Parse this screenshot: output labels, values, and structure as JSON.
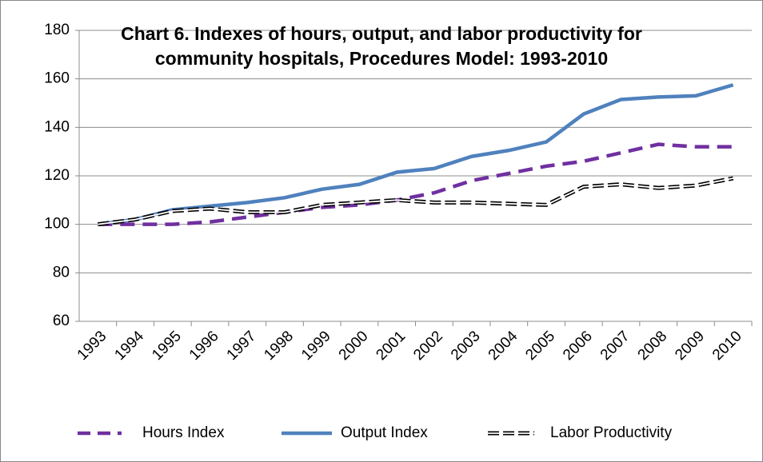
{
  "chart_data": {
    "type": "line",
    "title": "Chart 6. Indexes of hours, output, and labor productivity for community hospitals, Procedures Model: 1993-2010",
    "categories": [
      "1993",
      "1994",
      "1995",
      "1996",
      "1997",
      "1998",
      "1999",
      "2000",
      "2001",
      "2002",
      "2003",
      "2004",
      "2005",
      "2006",
      "2007",
      "2008",
      "2009",
      "2010"
    ],
    "series": [
      {
        "name": "Hours Index",
        "color": "#7030a0",
        "style": "dashed",
        "values": [
          100,
          100,
          100,
          101,
          103,
          105,
          107,
          108,
          110,
          113,
          118,
          121,
          124,
          126,
          129.5,
          133,
          132,
          132
        ]
      },
      {
        "name": "Output Index",
        "color": "#4f81bd",
        "style": "solid",
        "values": [
          100,
          102,
          106,
          107.5,
          109,
          111,
          114.5,
          116.5,
          121.5,
          123,
          128,
          130.5,
          134,
          145.5,
          151.5,
          152.5,
          153,
          157.5
        ]
      },
      {
        "name": "Labor Productivity",
        "color": "#000000",
        "style": "double",
        "values": [
          100,
          102,
          105.5,
          106.5,
          105,
          105,
          108,
          109,
          110,
          109,
          109,
          108.5,
          108,
          115.5,
          116.5,
          115,
          116,
          119
        ]
      }
    ],
    "ylim": [
      60,
      180
    ],
    "yticks": [
      60,
      80,
      100,
      120,
      140,
      160,
      180
    ],
    "grid": true,
    "legend": "bottom"
  }
}
